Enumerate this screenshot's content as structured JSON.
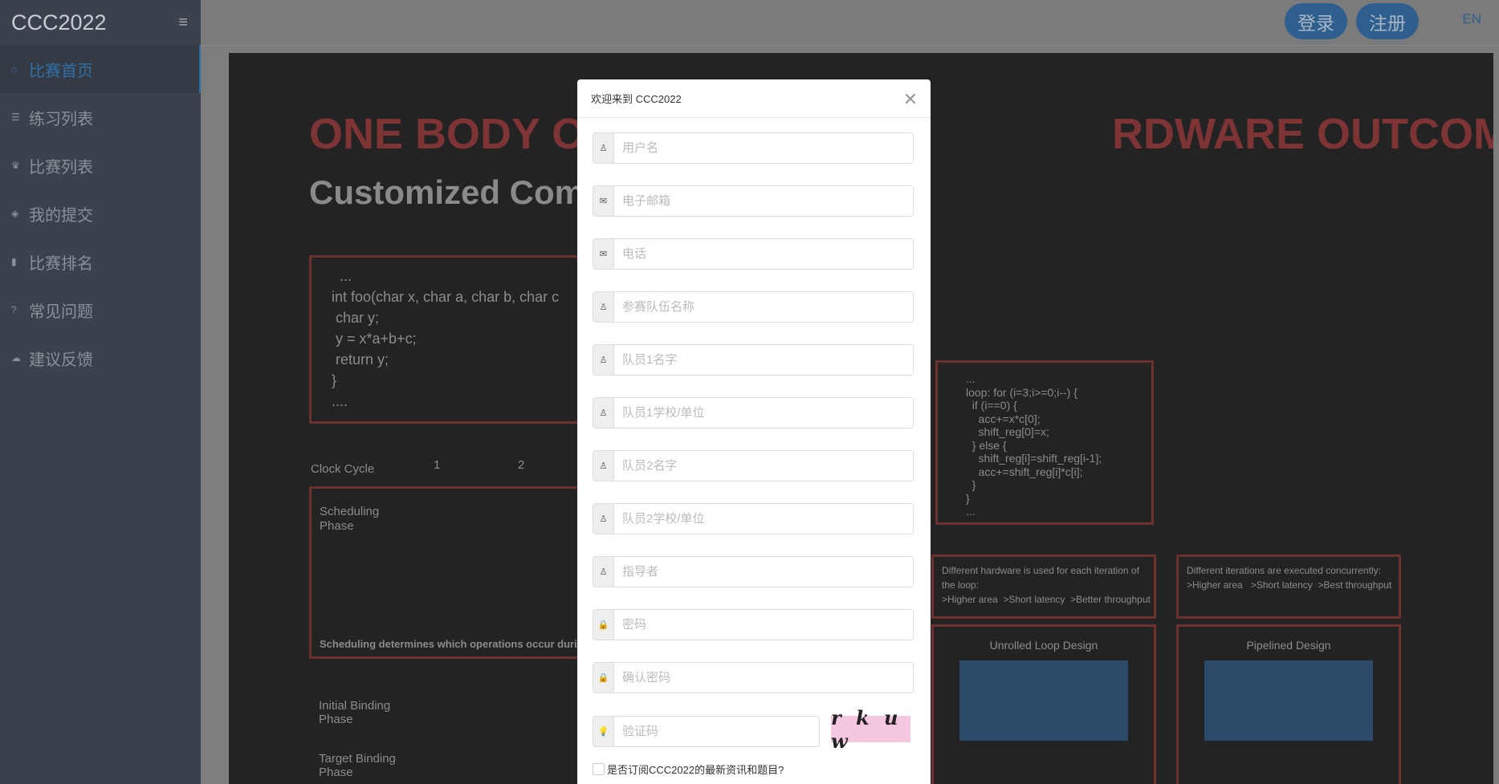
{
  "app": {
    "logo": "CCC2022"
  },
  "sidebar": {
    "items": [
      {
        "label": "比赛首页",
        "icon": "home-icon",
        "active": true
      },
      {
        "label": "练习列表",
        "icon": "list-icon"
      },
      {
        "label": "比赛列表",
        "icon": "trophy-icon"
      },
      {
        "label": "我的提交",
        "icon": "layers-icon"
      },
      {
        "label": "比赛排名",
        "icon": "bar-chart-icon"
      },
      {
        "label": "常见问题",
        "icon": "question-icon"
      },
      {
        "label": "建议反馈",
        "icon": "cloud-icon"
      }
    ]
  },
  "header": {
    "login": "登录",
    "register": "注册",
    "lang": "EN"
  },
  "banner": {
    "title_left": "ONE BODY OF",
    "title_right": "RDWARE OUTCOMES",
    "subtitle": "Customized Com",
    "code1": "  ...\nint foo(char x, char a, char b, char c\n char y;\n y = x*a+b+c;\n return y;\n}\n....",
    "code2": "...\nloop: for (i=3;i>=0;i--) {\n  if (i==0) {\n    acc+=x*c[0];\n    shift_reg[0]=x;\n  } else {\n    shift_reg[i]=shift_reg[i-1];\n    acc+=shift_reg[i]*c[i];\n  }\n}\n...",
    "clock_cycle": "Clock Cycle",
    "cycle1": "1",
    "cycle2": "2",
    "scheduling_phase": "Scheduling\nPhase",
    "scheduling_note": "Scheduling determines which operations occur during e",
    "initial_binding": "Initial Binding\nPhase",
    "target_binding": "Target Binding\nPhase",
    "note1": "Different hardware is used for each iteration of\nthe loop:\n>Higher area  >Short latency  >Better throughput",
    "note2": "Different iterations are executed concurrently:\n>Higher area   >Short latency  >Best throughput",
    "unrolled": "Unrolled Loop Design",
    "pipelined": "Pipelined Design"
  },
  "modal": {
    "title": "欢迎来到 CCC2022",
    "fields": [
      {
        "placeholder": "用户名",
        "icon": "user-icon"
      },
      {
        "placeholder": "电子邮箱",
        "icon": "envelope-icon"
      },
      {
        "placeholder": "电话",
        "icon": "envelope-icon"
      },
      {
        "placeholder": "参赛队伍名称",
        "icon": "user-icon"
      },
      {
        "placeholder": "队员1名字",
        "icon": "user-icon"
      },
      {
        "placeholder": "队员1学校/单位",
        "icon": "user-icon"
      },
      {
        "placeholder": "队员2名字",
        "icon": "user-icon"
      },
      {
        "placeholder": "队员2学校/单位",
        "icon": "user-icon"
      },
      {
        "placeholder": "指导者",
        "icon": "user-icon"
      },
      {
        "placeholder": "密码",
        "icon": "lock-icon"
      },
      {
        "placeholder": "确认密码",
        "icon": "lock-icon"
      }
    ],
    "captcha_placeholder": "验证码",
    "captcha_text": "rkuw",
    "subscribe_label": "是否订阅CCC2022的最新资讯和题目?"
  }
}
